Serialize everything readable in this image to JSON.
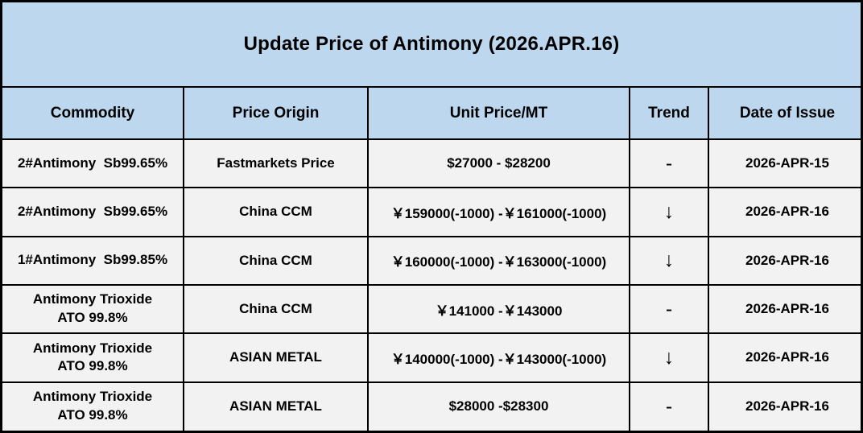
{
  "title": "Update Price of Antimony (2026.APR.16)",
  "colors": {
    "header_bg": "#BDD7EE",
    "row_bg": "#F2F2F2",
    "border": "#000000"
  },
  "table": {
    "columns": [
      "Commodity",
      "Price Origin",
      "Unit Price/MT",
      "Trend",
      "Date of Issue"
    ],
    "rows": [
      {
        "commodity": "2#Antimony  Sb99.65%",
        "origin": "Fastmarkets Price",
        "price": "$27000 - $28200",
        "trend": "-",
        "date": "2026-APR-15"
      },
      {
        "commodity": "2#Antimony  Sb99.65%",
        "origin": "China CCM",
        "price": "￥159000(-1000) -￥161000(-1000)",
        "trend": "↓",
        "date": "2026-APR-16"
      },
      {
        "commodity": "1#Antimony  Sb99.85%",
        "origin": "China CCM",
        "price": "￥160000(-1000) -￥163000(-1000)",
        "trend": "↓",
        "date": "2026-APR-16"
      },
      {
        "commodity": "Antimony Trioxide\nATO 99.8%",
        "origin": "China CCM",
        "price": "￥141000 -￥143000",
        "trend": "-",
        "date": "2026-APR-16"
      },
      {
        "commodity": "Antimony Trioxide\nATO 99.8%",
        "origin": "ASIAN METAL",
        "price": "￥140000(-1000) -￥143000(-1000)",
        "trend": "↓",
        "date": "2026-APR-16"
      },
      {
        "commodity": "Antimony Trioxide\nATO 99.8%",
        "origin": "ASIAN METAL",
        "price": "$28000 -$28300",
        "trend": "-",
        "date": "2026-APR-16"
      }
    ]
  }
}
